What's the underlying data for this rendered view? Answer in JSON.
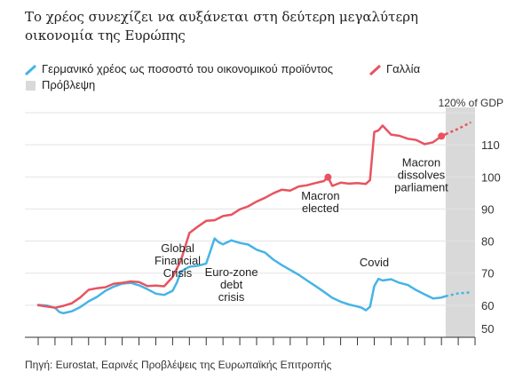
{
  "title": "Το χρέος συνεχίζει να αυξάνεται στη δεύτερη μεγαλύτερη οικονομία της Ευρώπης",
  "legend": {
    "germany": "Γερμανικό χρέος ως ποσοστό του οικονομικού προϊόντος",
    "france": "Γαλλία",
    "forecast": "Πρόβλεψη"
  },
  "source": "Πηγή: Eurostat, Εαρινές Προβλέψεις της Ευρωπαϊκής Επιτροπής",
  "chart_data": {
    "type": "line",
    "xlim": [
      2000,
      2026
    ],
    "ylim": [
      50,
      120
    ],
    "y_ticks": [
      50,
      60,
      70,
      80,
      90,
      100,
      110
    ],
    "top_label": "120% of GDP",
    "grid": true,
    "legend_position": "top-left",
    "forecast_band": [
      2024.25,
      2026
    ],
    "colors": {
      "germany": "#45b4e6",
      "france": "#e8535f",
      "forecast": "#d9d9d9"
    },
    "series": [
      {
        "name": "Γερμανικό χρέος ως ποσοστό του οικονομικού προϊόντος",
        "key": "germany",
        "color": "#45b4e6",
        "x": [
          2000,
          2000.5,
          2001,
          2001.25,
          2001.5,
          2002,
          2002.5,
          2003,
          2003.5,
          2004,
          2004.5,
          2005,
          2005.5,
          2006,
          2006.5,
          2007,
          2007.5,
          2008,
          2008.25,
          2008.5,
          2009,
          2009.5,
          2010,
          2010.5,
          2010.75,
          2011,
          2011.5,
          2012,
          2012.5,
          2013,
          2013.5,
          2014,
          2014.5,
          2015,
          2015.5,
          2016,
          2016.5,
          2017,
          2017.5,
          2018,
          2018.5,
          2019,
          2019.25,
          2019.5,
          2019.75,
          2020,
          2020.25,
          2020.5,
          2021,
          2021.5,
          2022,
          2022.5,
          2023,
          2023.5,
          2024,
          2024.25
        ],
        "y": [
          60.1,
          59.9,
          59.2,
          57.9,
          57.5,
          58.1,
          59.4,
          61.2,
          62.6,
          64.5,
          65.8,
          66.7,
          67.0,
          66.2,
          65.0,
          63.6,
          63.2,
          64.5,
          67.0,
          70.5,
          72.0,
          72.3,
          73.0,
          80.8,
          79.6,
          79.0,
          80.2,
          79.4,
          78.9,
          77.3,
          76.4,
          74.2,
          72.5,
          71.0,
          69.5,
          67.7,
          66.0,
          64.2,
          62.3,
          61.1,
          60.2,
          59.6,
          59.2,
          58.4,
          59.5,
          66.0,
          68.2,
          67.7,
          68.1,
          67.0,
          66.3,
          64.7,
          63.4,
          62.1,
          62.4,
          62.8
        ]
      },
      {
        "name": "Γερμανικό χρέος ως ποσοστό του οικονομικού προϊόντος",
        "key": "germany",
        "forecast": true,
        "color": "#45b4e6",
        "x": [
          2024.25,
          2025,
          2025.75
        ],
        "y": [
          62.8,
          63.7,
          64.0
        ]
      },
      {
        "name": "Γαλλία",
        "key": "france",
        "color": "#e8535f",
        "x": [
          2000,
          2000.5,
          2001,
          2001.5,
          2002,
          2002.5,
          2003,
          2003.5,
          2004,
          2004.5,
          2005,
          2005.5,
          2006,
          2006.5,
          2007,
          2007.5,
          2008,
          2008.5,
          2009,
          2009.5,
          2010,
          2010.5,
          2011,
          2011.5,
          2012,
          2012.5,
          2013,
          2013.5,
          2014,
          2014.5,
          2015,
          2015.5,
          2016,
          2016.5,
          2017,
          2017.25,
          2017.5,
          2018,
          2018.5,
          2019,
          2019.5,
          2019.75,
          2020,
          2020.25,
          2020.5,
          2021,
          2021.5,
          2022,
          2022.5,
          2023,
          2023.5,
          2024,
          2024.25
        ],
        "y": [
          60.0,
          59.6,
          59.2,
          59.8,
          60.6,
          62.4,
          64.8,
          65.3,
          65.6,
          66.7,
          67.0,
          67.4,
          67.2,
          66.0,
          66.1,
          65.9,
          68.8,
          74.0,
          82.5,
          84.5,
          86.3,
          86.5,
          87.8,
          88.2,
          89.9,
          90.8,
          92.3,
          93.5,
          94.9,
          96.0,
          95.7,
          97.0,
          97.4,
          98.1,
          98.7,
          99.9,
          97.2,
          98.2,
          97.9,
          98.1,
          97.8,
          99.0,
          114.0,
          114.5,
          116.0,
          113.2,
          112.8,
          111.9,
          111.5,
          110.2,
          110.8,
          112.7,
          113.3
        ]
      },
      {
        "name": "Γαλλία",
        "key": "france",
        "forecast": true,
        "color": "#e8535f",
        "x": [
          2024.25,
          2025,
          2025.75
        ],
        "y": [
          113.3,
          115.0,
          117.0
        ]
      }
    ],
    "markers": [
      {
        "series": "france",
        "x": 2017.25,
        "y": 99.9
      },
      {
        "series": "france",
        "x": 2024,
        "y": 112.7
      }
    ],
    "annotations": [
      {
        "lines": [
          "Global",
          "Financial",
          "Crisis"
        ],
        "x": 2008.3,
        "y": 76.6
      },
      {
        "lines": [
          "Euro-zone",
          "debt",
          "crisis"
        ],
        "x": 2011.5,
        "y": 69.1
      },
      {
        "lines": [
          "Macron",
          "elected"
        ],
        "x": 2016.8,
        "y": 92.9
      },
      {
        "lines": [
          "Covid"
        ],
        "x": 2020,
        "y": 72.2
      },
      {
        "lines": [
          "Macron",
          "dissolves",
          "parliament"
        ],
        "x": 2022.8,
        "y": 103.3
      }
    ]
  }
}
